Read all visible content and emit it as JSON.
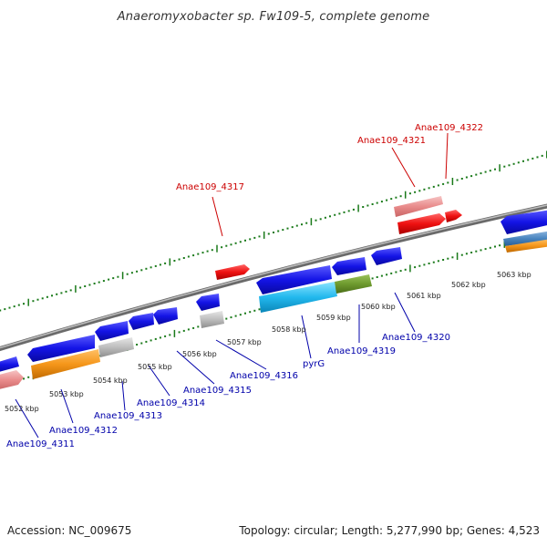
{
  "title": "Anaeromyxobacter sp. Fw109-5, complete genome",
  "footer": {
    "accession": "Accession: NC_009675",
    "summary": "Topology: circular; Length: 5,277,990 bp; Genes: 4,523"
  },
  "colors": {
    "backbone": "#8a8a8a",
    "tick": "#1a7a1a",
    "forward_gene": "#ee1111",
    "reverse_gene": "#1111dd",
    "label_forward": "#cc0000",
    "label_reverse": "#0000aa"
  },
  "scale_labels": [
    "5052 kbp",
    "5053 kbp",
    "5054 kbp",
    "5055 kbp",
    "5056 kbp",
    "5057 kbp",
    "5058 kbp",
    "5059 kbp",
    "5060 kbp",
    "5061 kbp",
    "5062 kbp",
    "5063 kbp"
  ],
  "forward_labels": [
    "Anae109_4317",
    "Anae109_4321",
    "Anae109_4322"
  ],
  "reverse_labels": [
    "Anae109_4311",
    "Anae109_4312",
    "Anae109_4313",
    "Anae109_4314",
    "Anae109_4315",
    "Anae109_4316",
    "pyrG",
    "Anae109_4319",
    "Anae109_4320"
  ]
}
